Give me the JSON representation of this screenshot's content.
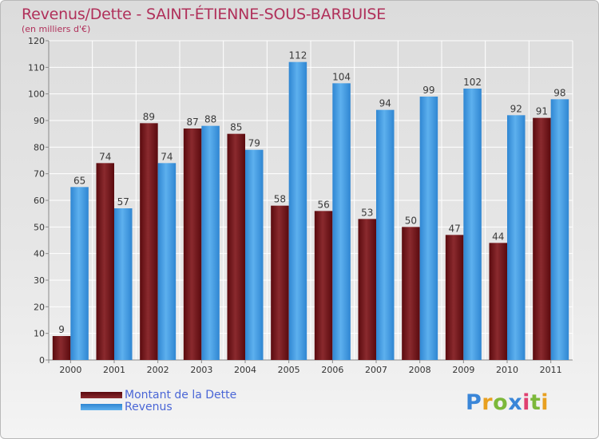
{
  "chart_data": {
    "type": "bar",
    "title": "Revenus/Dette - SAINT-ÉTIENNE-SOUS-BARBUISE",
    "subtitle": "(en milliers d'€)",
    "categories": [
      "2000",
      "2001",
      "2002",
      "2003",
      "2004",
      "2005",
      "2006",
      "2007",
      "2008",
      "2009",
      "2010",
      "2011"
    ],
    "series": [
      {
        "name": "Montant de la Dette",
        "color": "#7a1a1e",
        "values": [
          9,
          74,
          89,
          87,
          85,
          58,
          56,
          53,
          50,
          47,
          44,
          91
        ]
      },
      {
        "name": "Revenus",
        "color": "#4aa3e6",
        "values": [
          65,
          57,
          74,
          88,
          79,
          112,
          104,
          94,
          99,
          102,
          92,
          98
        ]
      }
    ],
    "ylim": [
      0,
      120
    ],
    "yticks": [
      0,
      10,
      20,
      30,
      40,
      50,
      60,
      70,
      80,
      90,
      100,
      110,
      120
    ],
    "xlabel": "",
    "ylabel": "",
    "grid": true,
    "legend_position": "bottom-left"
  },
  "branding": {
    "logo_letters": [
      "P",
      "r",
      "o",
      "x",
      "i",
      "t",
      "i"
    ],
    "logo_colors": [
      "#3a86d8",
      "#e8a020",
      "#7cb83a",
      "#3a86d8",
      "#e04070",
      "#7cb83a",
      "#e8a020"
    ]
  }
}
